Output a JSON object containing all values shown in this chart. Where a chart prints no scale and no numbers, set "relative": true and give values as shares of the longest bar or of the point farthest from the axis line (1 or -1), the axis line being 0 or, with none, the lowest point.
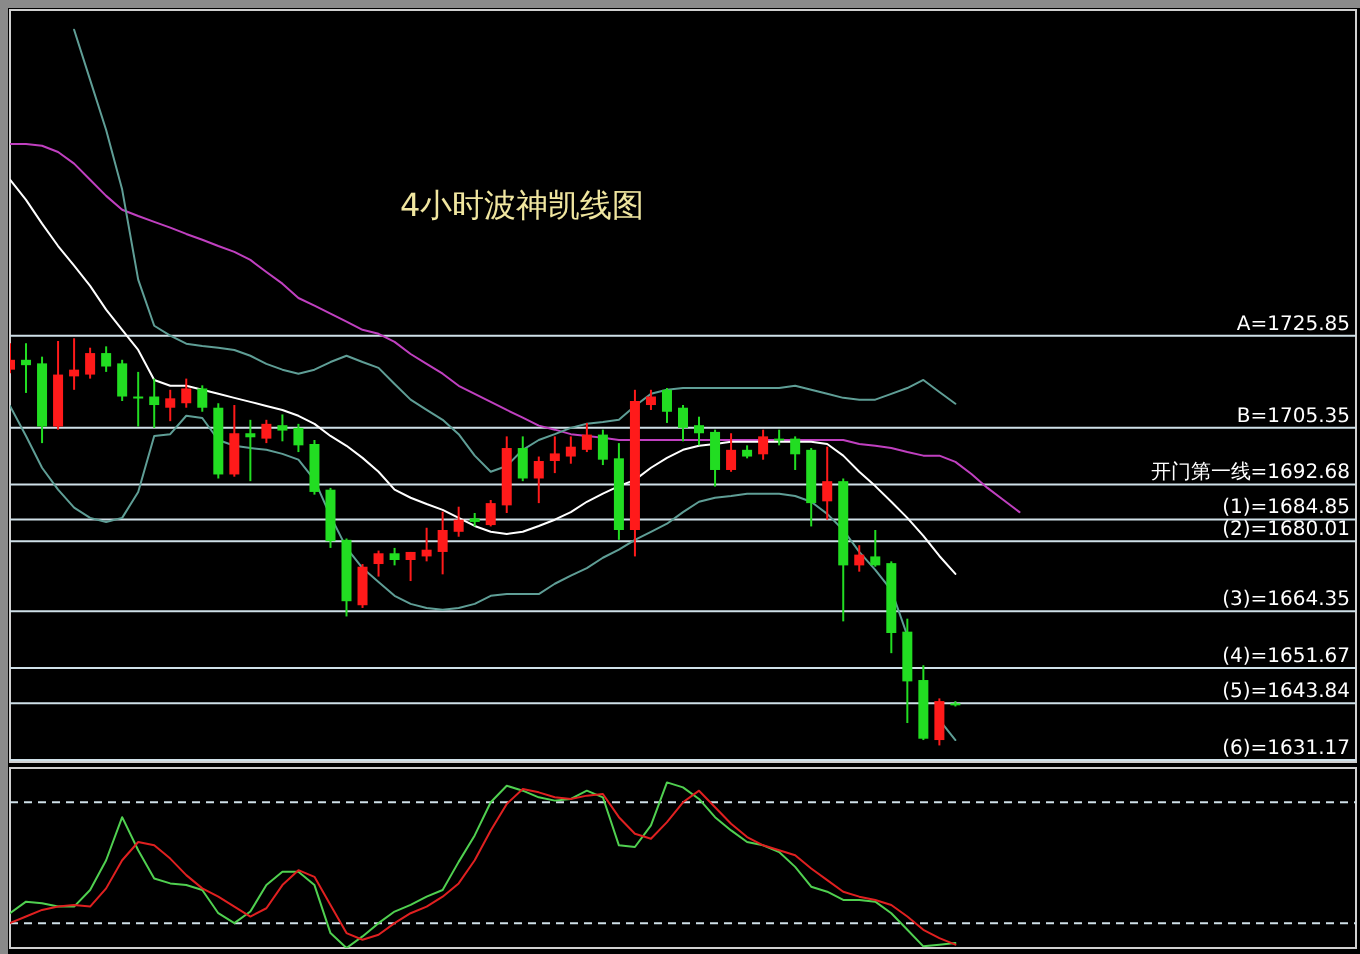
{
  "chart_data": [
    {
      "type": "candlestick",
      "title": "4小时波神凯线图",
      "tick_labels": false,
      "ylim": [
        1630.7,
        1798.6
      ],
      "categories": [
        null,
        null,
        null,
        null,
        null,
        null,
        null,
        null,
        null,
        null,
        null,
        null,
        null,
        null,
        null,
        null,
        null,
        null,
        null,
        null,
        null,
        null,
        null,
        null,
        null,
        null,
        null,
        null,
        null,
        null,
        null,
        null,
        null,
        null,
        null,
        null,
        null,
        null,
        null,
        null,
        null,
        null,
        null,
        null,
        null,
        null,
        null,
        null,
        null,
        null,
        null,
        null,
        null,
        null,
        null,
        null,
        null,
        null,
        null,
        null,
        null,
        null,
        null,
        null,
        null,
        null,
        null,
        null,
        null,
        null,
        null,
        null,
        null,
        null,
        null,
        null,
        null,
        null,
        null,
        null,
        null,
        null,
        null,
        null,
        null
      ],
      "ohlc": [
        [
          1718.3,
          1724.2,
          1717.5,
          1720.5
        ],
        [
          1720.5,
          1724.2,
          1713.1,
          1719.3
        ],
        [
          1719.7,
          1721.2,
          1701.9,
          1705.6
        ],
        [
          1705.6,
          1724.7,
          1704.9,
          1717.2
        ],
        [
          1716.8,
          1725.3,
          1713.8,
          1718.3
        ],
        [
          1717.2,
          1723.2,
          1716.3,
          1722.0
        ],
        [
          1722.0,
          1723.5,
          1717.8,
          1719.0
        ],
        [
          1719.7,
          1720.5,
          1711.3,
          1712.3
        ],
        [
          1712.3,
          1717.8,
          1705.6,
          1712.0
        ],
        [
          1712.3,
          1716.3,
          1705.3,
          1710.4
        ],
        [
          1709.8,
          1713.8,
          1706.8,
          1711.9
        ],
        [
          1710.8,
          1716.3,
          1709.8,
          1714.1
        ],
        [
          1714.1,
          1714.8,
          1708.9,
          1709.8
        ],
        [
          1709.8,
          1710.8,
          1694.0,
          1694.9
        ],
        [
          1694.9,
          1710.4,
          1694.4,
          1704.1
        ],
        [
          1704.1,
          1707.1,
          1693.4,
          1703.2
        ],
        [
          1702.9,
          1707.1,
          1701.9,
          1706.2
        ],
        [
          1705.9,
          1708.3,
          1702.3,
          1704.7
        ],
        [
          1705.3,
          1706.2,
          1699.9,
          1701.4
        ],
        [
          1701.7,
          1702.6,
          1690.4,
          1691.0
        ],
        [
          1691.5,
          1691.9,
          1678.5,
          1680.0
        ],
        [
          1680.3,
          1680.6,
          1663.2,
          1666.6
        ],
        [
          1665.7,
          1674.9,
          1665.1,
          1674.3
        ],
        [
          1674.9,
          1677.9,
          1672.1,
          1677.3
        ],
        [
          1677.3,
          1678.5,
          1674.6,
          1675.8
        ],
        [
          1675.8,
          1677.6,
          1671.1,
          1677.6
        ],
        [
          1676.6,
          1683.0,
          1675.5,
          1678.1
        ],
        [
          1677.6,
          1686.6,
          1672.6,
          1682.5
        ],
        [
          1682.1,
          1687.7,
          1681.0,
          1684.8
        ],
        [
          1685.1,
          1686.3,
          1683.3,
          1684.3
        ],
        [
          1683.6,
          1689.2,
          1683.3,
          1688.5
        ],
        [
          1688.0,
          1703.4,
          1686.3,
          1700.8
        ],
        [
          1700.8,
          1703.4,
          1693.4,
          1694.0
        ],
        [
          1694.0,
          1698.9,
          1688.5,
          1697.9
        ],
        [
          1697.9,
          1703.4,
          1695.2,
          1699.6
        ],
        [
          1698.9,
          1703.4,
          1697.3,
          1701.1
        ],
        [
          1700.4,
          1706.4,
          1699.9,
          1703.8
        ],
        [
          1703.8,
          1704.9,
          1697.0,
          1698.2
        ],
        [
          1698.5,
          1701.9,
          1680.3,
          1682.5
        ],
        [
          1682.5,
          1713.8,
          1676.6,
          1711.3
        ],
        [
          1710.4,
          1713.8,
          1709.3,
          1712.3
        ],
        [
          1713.8,
          1714.2,
          1706.4,
          1708.9
        ],
        [
          1709.8,
          1710.4,
          1702.3,
          1705.3
        ],
        [
          1705.9,
          1707.8,
          1701.4,
          1704.1
        ],
        [
          1704.4,
          1704.9,
          1692.2,
          1695.9
        ],
        [
          1695.9,
          1704.1,
          1695.5,
          1700.4
        ],
        [
          1700.4,
          1701.4,
          1698.5,
          1698.9
        ],
        [
          1699.4,
          1704.9,
          1698.2,
          1703.4
        ],
        [
          1702.9,
          1704.9,
          1701.4,
          1702.6
        ],
        [
          1702.9,
          1703.4,
          1695.9,
          1699.4
        ],
        [
          1700.4,
          1700.8,
          1683.3,
          1688.5
        ],
        [
          1688.9,
          1701.1,
          1684.8,
          1693.4
        ],
        [
          1693.4,
          1694.0,
          1662.1,
          1674.6
        ],
        [
          1674.6,
          1679.1,
          1673.2,
          1677.0
        ],
        [
          1676.6,
          1682.5,
          1674.3,
          1674.6
        ],
        [
          1675.1,
          1675.5,
          1655.0,
          1659.5
        ],
        [
          1659.8,
          1662.7,
          1639.4,
          1648.7
        ],
        [
          1649.0,
          1652.3,
          1635.6,
          1635.9
        ],
        [
          1635.6,
          1644.9,
          1634.4,
          1644.3
        ],
        [
          1643.8,
          1644.3,
          1643.1,
          1643.4
        ],
        null,
        null,
        null,
        null,
        null,
        null,
        null,
        null,
        null,
        null,
        null,
        null,
        null,
        null,
        null,
        null,
        null,
        null,
        null,
        null,
        null,
        null,
        null,
        null,
        null
      ],
      "colors": [
        "#ff1a1a",
        "#22dd22",
        "#22dd22",
        "#ff1a1a",
        "#ff1a1a",
        "#ff1a1a",
        "#22dd22",
        "#22dd22",
        "#22dd22",
        "#22dd22",
        "#ff1a1a",
        "#ff1a1a",
        "#22dd22",
        "#22dd22",
        "#ff1a1a",
        "#22dd22",
        "#ff1a1a",
        "#22dd22",
        "#22dd22",
        "#22dd22",
        "#22dd22",
        "#22dd22",
        "#ff1a1a",
        "#ff1a1a",
        "#22dd22",
        "#ff1a1a",
        "#ff1a1a",
        "#ff1a1a",
        "#ff1a1a",
        "#22dd22",
        "#ff1a1a",
        "#ff1a1a",
        "#22dd22",
        "#ff1a1a",
        "#ff1a1a",
        "#ff1a1a",
        "#ff1a1a",
        "#22dd22",
        "#22dd22",
        "#ff1a1a",
        "#ff1a1a",
        "#22dd22",
        "#22dd22",
        "#22dd22",
        "#22dd22",
        "#ff1a1a",
        "#22dd22",
        "#ff1a1a",
        "#22dd22",
        "#22dd22",
        "#22dd22",
        "#ff1a1a",
        "#22dd22",
        "#ff1a1a",
        "#22dd22",
        "#22dd22",
        "#22dd22",
        "#22dd22",
        "#ff1a1a",
        "#22dd22",
        null,
        null,
        null,
        null,
        null,
        null,
        null,
        null,
        null,
        null,
        null,
        null,
        null,
        null,
        null,
        null,
        null,
        null,
        null,
        null,
        null,
        null,
        null,
        null,
        null
      ],
      "series": [
        {
          "type": "line",
          "color": "#c040c0",
          "values": [
            1768.7,
            1768.7,
            1768.3,
            1766.9,
            1764.3,
            1760.7,
            1757.1,
            1754.0,
            1752.6,
            1751.3,
            1750.0,
            1748.6,
            1747.3,
            1745.9,
            1744.6,
            1742.8,
            1740.1,
            1737.5,
            1734.3,
            1732.6,
            1730.8,
            1729.0,
            1727.2,
            1726.3,
            1724.5,
            1721.8,
            1719.6,
            1717.4,
            1714.7,
            1712.9,
            1711.1,
            1709.3,
            1707.6,
            1705.8,
            1704.9,
            1703.9,
            1703.5,
            1703.1,
            1702.6,
            1702.6,
            1702.6,
            1702.6,
            1702.6,
            1702.6,
            1702.6,
            1702.6,
            1702.6,
            1702.6,
            1702.6,
            1702.6,
            1702.6,
            1702.6,
            1702.6,
            1701.7,
            1701.3,
            1700.8,
            1699.9,
            1699.1,
            1699.1,
            1697.7,
            1695.0,
            1691.9,
            1689.2,
            1686.5,
            null,
            null,
            null,
            null,
            null,
            null,
            null,
            null,
            null,
            null,
            null,
            null,
            null,
            null,
            null,
            null,
            null,
            null,
            null,
            null,
            null
          ]
        },
        {
          "type": "line",
          "color": "#5f9e96",
          "values": [
            null,
            null,
            null,
            null,
            1794.2,
            1783.0,
            1771.8,
            1758.5,
            1738.4,
            1728.1,
            1725.9,
            1724.1,
            1723.6,
            1723.2,
            1722.7,
            1721.4,
            1719.6,
            1718.3,
            1717.4,
            1718.3,
            1720.0,
            1721.4,
            1720.0,
            1718.7,
            1715.1,
            1711.6,
            1709.3,
            1707.1,
            1703.9,
            1699.1,
            1695.5,
            1696.8,
            1700.4,
            1702.6,
            1703.9,
            1705.3,
            1706.2,
            1706.6,
            1707.1,
            1710.2,
            1712.9,
            1713.8,
            1714.2,
            1714.2,
            1714.2,
            1714.2,
            1714.2,
            1714.2,
            1714.2,
            1714.7,
            1713.8,
            1712.9,
            1712.0,
            1711.6,
            1711.6,
            1712.9,
            1714.2,
            1716.0,
            1713.3,
            1710.7,
            null,
            null,
            null,
            null,
            null,
            null,
            null,
            null,
            null,
            null,
            null,
            null,
            null,
            null,
            null,
            null,
            null,
            null,
            null,
            null,
            null,
            null,
            null,
            null,
            null
          ]
        },
        {
          "type": "line",
          "color": "#ffffff",
          "values": [
            1760.7,
            1756.2,
            1750.9,
            1745.9,
            1741.5,
            1737.0,
            1731.7,
            1727.2,
            1722.7,
            1716.0,
            1714.7,
            1714.7,
            1713.8,
            1712.9,
            1712.0,
            1711.1,
            1710.2,
            1709.3,
            1708.0,
            1706.2,
            1703.5,
            1701.3,
            1698.6,
            1695.5,
            1691.5,
            1689.7,
            1688.3,
            1687.0,
            1685.2,
            1683.4,
            1682.1,
            1681.6,
            1682.1,
            1683.4,
            1684.8,
            1686.5,
            1688.8,
            1690.6,
            1692.3,
            1693.7,
            1696.4,
            1698.6,
            1700.4,
            1701.3,
            1701.7,
            1702.2,
            1702.2,
            1702.2,
            1702.2,
            1702.2,
            1702.2,
            1701.7,
            1699.1,
            1695.5,
            1692.3,
            1688.8,
            1685.2,
            1681.2,
            1676.7,
            1672.7,
            null,
            null,
            null,
            null,
            null,
            null,
            null,
            null,
            null,
            null,
            null,
            null,
            null,
            null,
            null,
            null,
            null,
            null,
            null,
            null,
            null,
            null,
            null,
            null,
            null
          ]
        },
        {
          "type": "line",
          "color": "#5f9e96",
          "values": [
            1710.2,
            1703.5,
            1696.4,
            1691.5,
            1687.5,
            1685.2,
            1684.3,
            1685.2,
            1691.0,
            1703.5,
            1703.9,
            1708.0,
            1707.5,
            1702.6,
            1701.3,
            1700.8,
            1700.4,
            1699.5,
            1698.2,
            1693.7,
            1685.6,
            1678.5,
            1674.0,
            1670.9,
            1667.8,
            1666.0,
            1665.1,
            1664.7,
            1665.1,
            1666.0,
            1667.8,
            1668.2,
            1668.2,
            1668.2,
            1670.5,
            1672.3,
            1674.0,
            1676.3,
            1678.1,
            1680.3,
            1682.1,
            1683.9,
            1686.5,
            1688.8,
            1689.7,
            1690.1,
            1690.6,
            1690.6,
            1690.6,
            1690.1,
            1688.8,
            1686.1,
            1682.5,
            1677.6,
            1673.6,
            1669.1,
            1658.9,
            null,
            1640.1,
            1635.6,
            null,
            null,
            null,
            null,
            null,
            null,
            null,
            null,
            null,
            null,
            null,
            null,
            null,
            null,
            null,
            null,
            null,
            null,
            null,
            null,
            null,
            null,
            null,
            null,
            null
          ]
        }
      ],
      "ref_lines": [
        {
          "axis": "y",
          "value": 1725.85,
          "label": "A=1725.85"
        },
        {
          "axis": "y",
          "value": 1705.35,
          "label": "B=1705.35"
        },
        {
          "axis": "y",
          "value": 1692.68,
          "label": "开门第一线=1692.68"
        },
        {
          "axis": "y",
          "value": 1684.85,
          "label": "(1)=1684.85"
        },
        {
          "axis": "y",
          "value": 1680.01,
          "label": "(2)=1680.01"
        },
        {
          "axis": "y",
          "value": 1664.35,
          "label": "(3)=1664.35"
        },
        {
          "axis": "y",
          "value": 1651.67,
          "label": "(4)=1651.67"
        },
        {
          "axis": "y",
          "value": 1643.84,
          "label": "(5)=1643.84"
        },
        {
          "axis": "y",
          "value": 1631.17,
          "label": "(6)=1631.17"
        }
      ]
    },
    {
      "type": "line",
      "relative": true,
      "tick_labels": false,
      "categories": [
        null,
        null,
        null,
        null,
        null,
        null,
        null,
        null,
        null,
        null,
        null,
        null,
        null,
        null,
        null,
        null,
        null,
        null,
        null,
        null,
        null,
        null,
        null,
        null,
        null,
        null,
        null,
        null,
        null,
        null,
        null,
        null,
        null,
        null,
        null,
        null,
        null,
        null,
        null,
        null,
        null,
        null,
        null,
        null,
        null,
        null,
        null,
        null,
        null,
        null,
        null,
        null,
        null,
        null,
        null,
        null,
        null,
        null,
        null,
        null,
        null,
        null,
        null,
        null,
        null,
        null,
        null,
        null,
        null,
        null,
        null,
        null,
        null,
        null,
        null,
        null,
        null,
        null,
        null,
        null,
        null,
        null,
        null,
        null,
        null
      ],
      "series": [
        {
          "color": "#50d050",
          "values": [
            0.21,
            0.28,
            0.27,
            0.25,
            0.25,
            0.35,
            0.53,
            0.79,
            0.59,
            0.42,
            0.39,
            0.38,
            0.35,
            0.21,
            0.15,
            0.22,
            0.38,
            0.46,
            0.46,
            0.38,
            0.09,
            0,
            0.07,
            0.15,
            0.22,
            0.26,
            0.31,
            0.35,
            0.52,
            0.68,
            0.88,
            0.98,
            0.95,
            0.91,
            0.89,
            0.9,
            0.95,
            0.91,
            0.62,
            0.61,
            0.74,
            1,
            0.97,
            0.9,
            0.79,
            0.71,
            0.64,
            0.62,
            0.58,
            0.49,
            0.37,
            0.34,
            0.29,
            0.29,
            0.28,
            0.21,
            0.11,
            0.01,
            0.02,
            0.03,
            null,
            null,
            null,
            null,
            null,
            null,
            null,
            null,
            null,
            null,
            null,
            null,
            null,
            null,
            null,
            null,
            null,
            null,
            null,
            null,
            null,
            null,
            null,
            null,
            null
          ]
        },
        {
          "color": "#e02020",
          "values": [
            0.15,
            0.19,
            0.23,
            0.25,
            0.26,
            0.25,
            0.36,
            0.53,
            0.64,
            0.62,
            0.54,
            0.44,
            0.36,
            0.31,
            0.25,
            0.19,
            0.24,
            0.38,
            0.47,
            0.43,
            0.26,
            0.09,
            0.05,
            0.08,
            0.15,
            0.21,
            0.25,
            0.31,
            0.39,
            0.53,
            0.71,
            0.87,
            0.96,
            0.94,
            0.91,
            0.9,
            0.92,
            0.93,
            0.79,
            0.69,
            0.66,
            0.76,
            0.88,
            0.95,
            0.85,
            0.75,
            0.67,
            0.62,
            0.59,
            0.56,
            0.48,
            0.41,
            0.34,
            0.31,
            0.29,
            0.26,
            0.19,
            0.11,
            0.06,
            0.02,
            null,
            null,
            null,
            null,
            null,
            null,
            null,
            null,
            null,
            null,
            null,
            null,
            null,
            null,
            null,
            null,
            null,
            null,
            null,
            null,
            null,
            null,
            null,
            null,
            null
          ]
        }
      ],
      "ref_lines": [
        {
          "axis": "y",
          "value": 0.88,
          "line_style": "dashed"
        },
        {
          "axis": "y",
          "value": 0.15,
          "line_style": "dashed"
        }
      ]
    }
  ]
}
